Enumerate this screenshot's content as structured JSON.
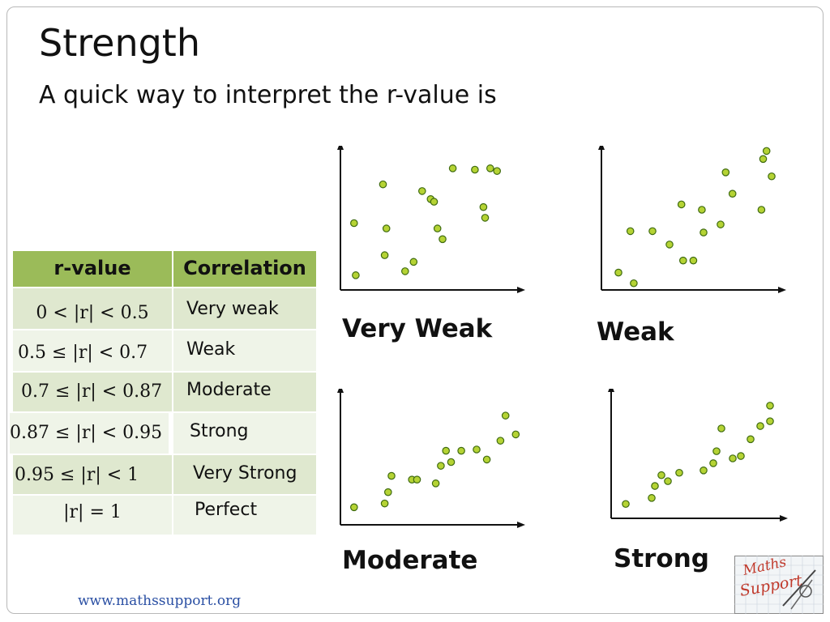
{
  "slide": {
    "title": "Strength",
    "subtitle": "A quick way to interpret the r-value is",
    "footer": "www.mathssupport.org"
  },
  "table": {
    "headers": [
      "r-value",
      "Correlation"
    ],
    "rows": [
      {
        "range": "0 < |r| < 0.5",
        "label": "Very weak"
      },
      {
        "range": "0.5 ≤ |r| < 0.7",
        "label": "Weak"
      },
      {
        "range": "0.7 ≤ |r| < 0.87",
        "label": "Moderate"
      },
      {
        "range": "0.87 ≤ |r| < 0.95",
        "label": "Strong"
      },
      {
        "range": "0.95 ≤ |r| < 1",
        "label": "Very Strong"
      },
      {
        "range": "|r| = 1",
        "label": "Perfect"
      }
    ]
  },
  "colors": {
    "header": "#9bbb59",
    "row_dark": "#dfe8cf",
    "row_light": "#eff4e8",
    "point_fill": "#b5d334",
    "point_stroke": "#3f6b10"
  },
  "logo": {
    "text": "Maths Support"
  },
  "chart_data": [
    {
      "type": "scatter",
      "title": "Very Weak",
      "xlim": [
        0,
        100
      ],
      "ylim": [
        0,
        100
      ],
      "x": [
        9,
        8,
        27,
        25,
        26,
        43,
        38,
        48,
        57,
        53,
        55,
        60,
        66,
        79,
        84,
        88,
        85,
        92
      ],
      "y": [
        11,
        50,
        46,
        79,
        26,
        21,
        14,
        74,
        46,
        68,
        66,
        38,
        91,
        90,
        62,
        91,
        54,
        89
      ]
    },
    {
      "type": "scatter",
      "title": "Weak",
      "xlim": [
        0,
        100
      ],
      "ylim": [
        0,
        100
      ],
      "x": [
        10,
        19,
        17,
        30,
        40,
        48,
        54,
        47,
        60,
        59,
        70,
        73,
        77,
        94,
        95,
        97,
        100
      ],
      "y": [
        13,
        5,
        44,
        44,
        34,
        22,
        22,
        64,
        43,
        60,
        49,
        88,
        72,
        60,
        98,
        104,
        85
      ]
    },
    {
      "type": "scatter",
      "title": "Moderate",
      "xlim": [
        0,
        100
      ],
      "ylim": [
        0,
        100
      ],
      "x": [
        8,
        26,
        28,
        30,
        42,
        45,
        56,
        59,
        62,
        65,
        71,
        80,
        86,
        94,
        97,
        103
      ],
      "y": [
        14,
        17,
        26,
        39,
        36,
        36,
        33,
        47,
        59,
        50,
        59,
        60,
        52,
        67,
        87,
        72
      ]
    },
    {
      "type": "scatter",
      "title": "Strong",
      "xlim": [
        0,
        100
      ],
      "ylim": [
        0,
        100
      ],
      "x": [
        9,
        25,
        27,
        31,
        35,
        42,
        57,
        63,
        65,
        68,
        75,
        80,
        86,
        92,
        98,
        98
      ],
      "y": [
        12,
        17,
        27,
        36,
        31,
        38,
        40,
        46,
        56,
        75,
        50,
        52,
        66,
        77,
        81,
        94
      ]
    }
  ]
}
